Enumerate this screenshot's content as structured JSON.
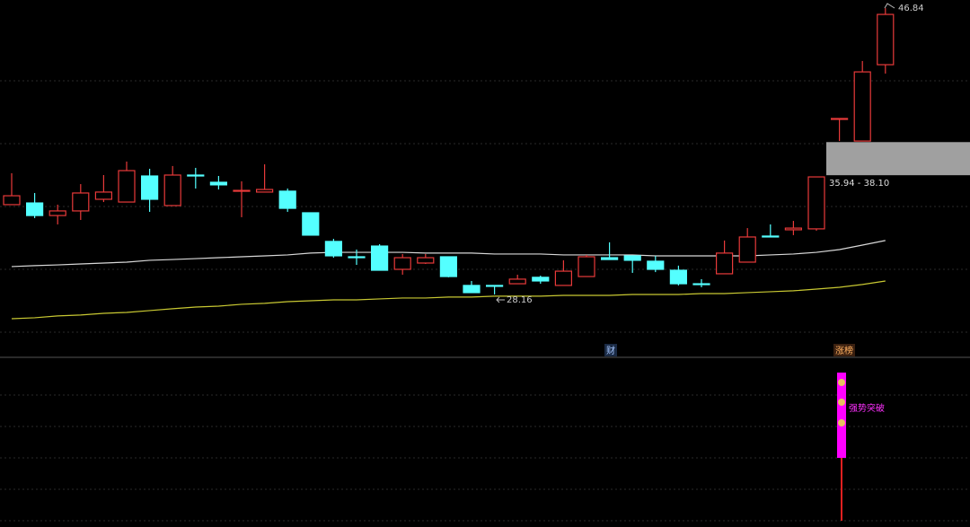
{
  "chart_data": {
    "type": "candlestick",
    "ylim": [
      25.7,
      47.37
    ],
    "up_color": "#e83a3a",
    "down_color": "#54ffff",
    "open": [
      34.02,
      34.13,
      33.31,
      33.61,
      34.37,
      34.19,
      35.89,
      33.96,
      35.95,
      35.48,
      34.9,
      34.84,
      34.9,
      33.49,
      31.62,
      30.62,
      31.32,
      29.8,
      30.21,
      30.62,
      28.75,
      28.75,
      28.86,
      29.28,
      28.75,
      29.33,
      30.56,
      30.68,
      30.33,
      29.74,
      28.86,
      29.51,
      30.27,
      31.97,
      32.38,
      32.44,
      39.6,
      38.17,
      43.15
    ],
    "close": [
      34.6,
      33.31,
      33.61,
      34.78,
      34.84,
      36.24,
      34.37,
      35.95,
      35.89,
      35.31,
      34.95,
      35.01,
      33.78,
      32.03,
      30.68,
      30.56,
      29.74,
      30.56,
      30.56,
      29.33,
      28.28,
      28.69,
      29.16,
      29.04,
      29.68,
      30.62,
      30.44,
      30.39,
      29.8,
      28.86,
      28.81,
      30.86,
      31.91,
      31.91,
      32.49,
      35.83,
      39.64,
      42.68,
      46.43
    ],
    "high": [
      36.07,
      34.78,
      34.02,
      35.36,
      35.95,
      36.83,
      36.36,
      36.54,
      36.42,
      35.89,
      35.54,
      36.65,
      35.07,
      33.49,
      31.79,
      31.09,
      31.44,
      30.8,
      30.8,
      30.62,
      29.04,
      28.75,
      29.45,
      29.39,
      30.39,
      30.74,
      31.56,
      30.68,
      30.68,
      30.04,
      29.16,
      31.68,
      32.49,
      32.73,
      32.96,
      35.83,
      39.64,
      43.39,
      46.84
    ],
    "low": [
      34.02,
      33.14,
      32.73,
      33.02,
      34.19,
      34.19,
      33.55,
      33.96,
      35.07,
      35.01,
      33.2,
      34.84,
      33.55,
      32.03,
      30.56,
      30.09,
      29.74,
      29.45,
      30.15,
      29.28,
      28.28,
      28.16,
      28.86,
      28.86,
      28.75,
      29.33,
      30.44,
      29.57,
      29.62,
      28.75,
      28.63,
      29.51,
      30.27,
      31.91,
      32.03,
      32.32,
      38.17,
      38.17,
      42.57
    ],
    "lines": [
      {
        "color": "#d8d8d8",
        "values": [
          29.98,
          30.04,
          30.09,
          30.15,
          30.21,
          30.27,
          30.39,
          30.44,
          30.5,
          30.56,
          30.62,
          30.68,
          30.74,
          30.86,
          30.91,
          30.91,
          30.91,
          30.91,
          30.86,
          30.86,
          30.86,
          30.8,
          30.8,
          30.8,
          30.74,
          30.74,
          30.74,
          30.74,
          30.68,
          30.68,
          30.68,
          30.68,
          30.68,
          30.74,
          30.8,
          30.91,
          31.09,
          31.38,
          31.68
        ]
      },
      {
        "color": "#c8c832",
        "values": [
          26.58,
          26.64,
          26.76,
          26.82,
          26.93,
          26.99,
          27.11,
          27.23,
          27.34,
          27.4,
          27.52,
          27.58,
          27.69,
          27.75,
          27.81,
          27.81,
          27.87,
          27.93,
          27.93,
          27.99,
          27.99,
          28.05,
          28.05,
          28.05,
          28.1,
          28.1,
          28.1,
          28.16,
          28.16,
          28.16,
          28.22,
          28.22,
          28.28,
          28.34,
          28.4,
          28.51,
          28.63,
          28.81,
          29.04
        ]
      }
    ],
    "zone": {
      "low": 35.94,
      "high": 38.1,
      "label": "35.94 - 38.10"
    },
    "markers": [
      {
        "label": "财"
      },
      {
        "label": "涨榜"
      }
    ],
    "signal": {
      "label": "强势突破"
    }
  }
}
